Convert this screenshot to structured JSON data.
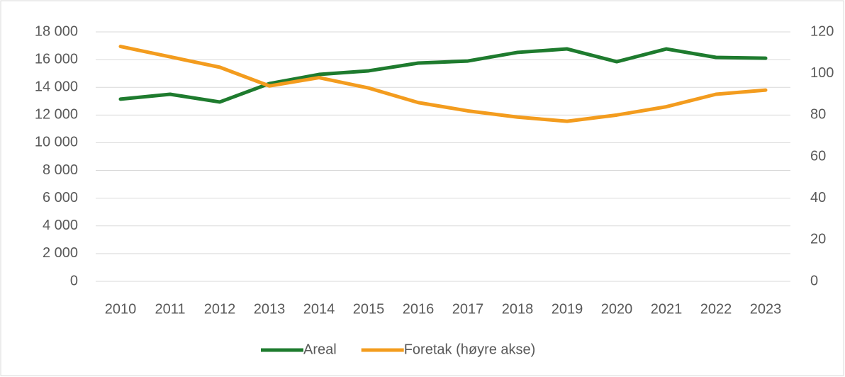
{
  "chart_data": {
    "type": "line",
    "categories": [
      "2010",
      "2011",
      "2012",
      "2013",
      "2014",
      "2015",
      "2016",
      "2017",
      "2018",
      "2019",
      "2020",
      "2021",
      "2022",
      "2023"
    ],
    "series": [
      {
        "name": "Areal",
        "color": "#1e7b2e",
        "values": [
          13150,
          13500,
          12940,
          14270,
          14930,
          15190,
          15750,
          15900,
          16520,
          16770,
          15850,
          16770,
          16160,
          16100
        ]
      },
      {
        "name": "Foretak (høyre akse)",
        "color": "#f39c1e",
        "axis": "y2",
        "values": [
          113,
          108,
          103,
          94,
          98,
          93,
          86,
          82,
          79,
          77,
          80,
          84,
          90,
          92
        ]
      }
    ],
    "ylim": [
      0,
      18000
    ],
    "yticks": [
      0,
      {
        "value": 2000,
        "label": "2 000"
      },
      {
        "value": 4000,
        "label": "4 000"
      },
      {
        "value": 6000,
        "label": "6 000"
      },
      {
        "value": 8000,
        "label": "8 000"
      },
      {
        "value": 10000,
        "label": "10 000"
      },
      {
        "value": 12000,
        "label": "12 000"
      },
      {
        "value": 14000,
        "label": "14 000"
      },
      {
        "value": 16000,
        "label": "16 000"
      },
      {
        "value": 18000,
        "label": "18 000"
      }
    ],
    "y2lim": [
      0,
      120
    ],
    "y2ticks": [
      0,
      20,
      40,
      60,
      80,
      100,
      120
    ],
    "grid": true,
    "legend": "bottom"
  }
}
